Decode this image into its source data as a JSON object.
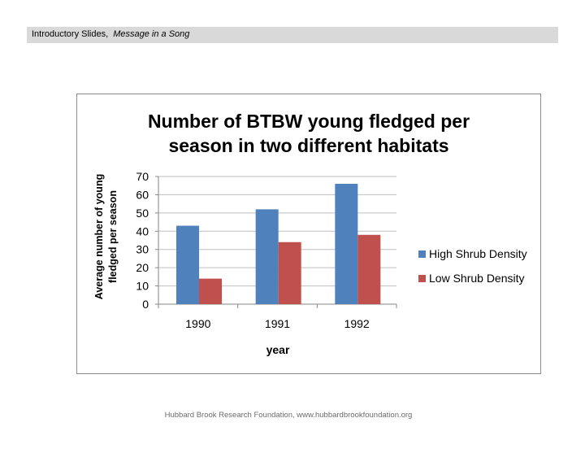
{
  "header": {
    "section": "Introductory Slides",
    "separator": ",",
    "topic": "Message in a Song"
  },
  "footer": {
    "credit": "Hubbard Brook Research Foundation, www.hubbardbrookfoundation.org"
  },
  "chart_data": {
    "type": "bar",
    "title": "Number of BTBW young fledged per season in two different habitats",
    "title_lines": [
      "Number of BTBW young fledged per",
      "season in two different habitats"
    ],
    "xlabel": "year",
    "ylabel": "Average number of young fledged per season",
    "ylabel_lines": [
      "Average number of young",
      "fledged per season"
    ],
    "categories": [
      "1990",
      "1991",
      "1992"
    ],
    "ylim": [
      0,
      70
    ],
    "yticks": [
      0,
      10,
      20,
      30,
      40,
      50,
      60,
      70
    ],
    "grid": true,
    "legend_position": "right",
    "series": [
      {
        "name": "High Shrub Density",
        "color": "#4f81bd",
        "values": [
          43,
          52,
          66
        ]
      },
      {
        "name": "Low Shrub Density",
        "color": "#c0504d",
        "values": [
          14,
          34,
          38
        ]
      }
    ]
  }
}
